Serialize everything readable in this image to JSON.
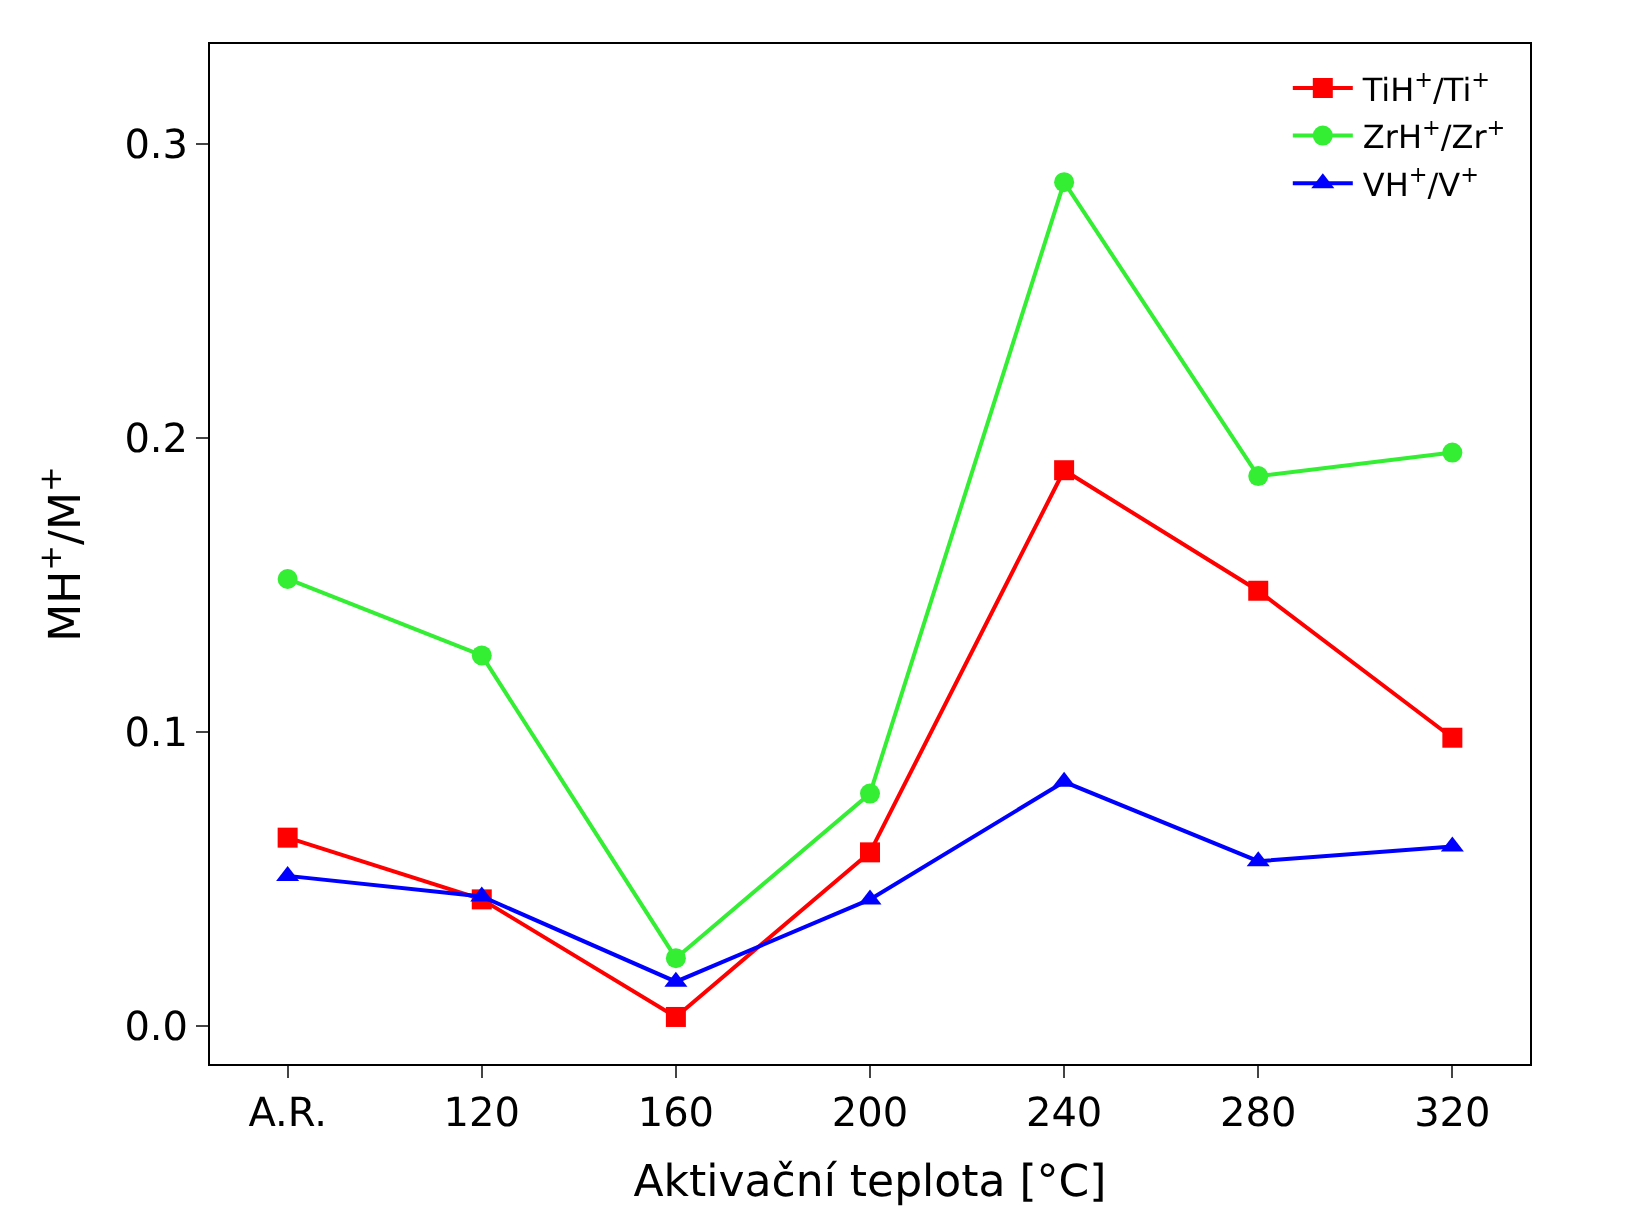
{
  "chart_data": {
    "type": "line",
    "xlabel": "Aktivační teplota [°C]",
    "ylabel": "MH$^{+}$/M$^{+}$",
    "categories": [
      "A.R.",
      "120",
      "160",
      "200",
      "240",
      "280",
      "320"
    ],
    "ylim": [
      -0.013,
      0.334
    ],
    "yticks": [
      {
        "value": 0,
        "label": "0.0"
      },
      0.1,
      0.2,
      0.3
    ],
    "legend": "top right",
    "line_style": "solid",
    "series": [
      {
        "name": "TiH$^{+}$/Ti$^{+}$",
        "color": "#ff0000",
        "marker": "square",
        "values": [
          0.064,
          0.043,
          0.003,
          0.059,
          0.189,
          0.148,
          0.098
        ]
      },
      {
        "name": "ZrH$^{+}$/Zr$^{+}$",
        "color": "#33ee33",
        "marker": "circle",
        "values": [
          0.152,
          0.126,
          0.023,
          0.079,
          0.287,
          0.187,
          0.195
        ]
      },
      {
        "name": "VH$^{+}$/V$^{+}$",
        "color": "#0000ff",
        "marker": "triangle",
        "values": [
          0.051,
          0.044,
          0.015,
          0.043,
          0.083,
          0.056,
          0.061
        ]
      }
    ]
  }
}
